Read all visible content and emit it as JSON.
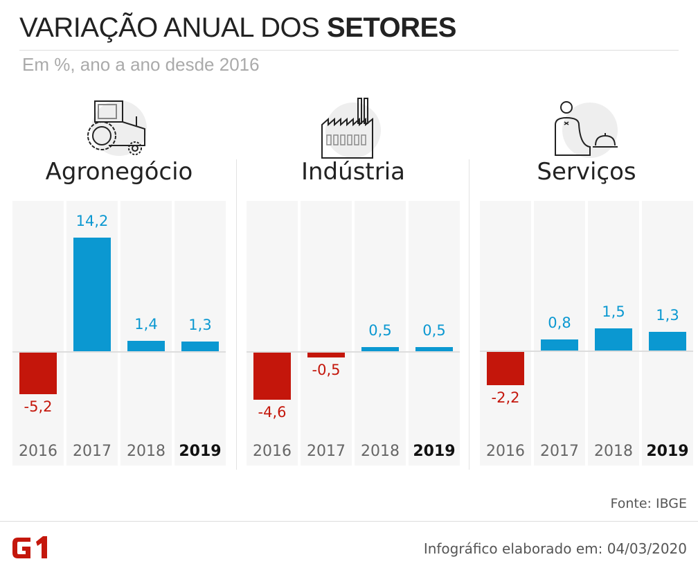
{
  "title_regular": "VARIAÇÃO ANUAL DOS",
  "title_bold": "SETORES",
  "subtitle": "Em %, ano a ano desde 2016",
  "colors": {
    "positive": "#0b98d1",
    "negative": "#c4160b",
    "column_bg": "#f6f6f6"
  },
  "chart_data": [
    {
      "type": "bar",
      "title": "Agronegócio",
      "icon": "tractor-icon",
      "categories": [
        "2016",
        "2017",
        "2018",
        "2019"
      ],
      "values": [
        -5.2,
        14.2,
        1.4,
        1.3
      ],
      "labels": [
        "-5,2",
        "14,2",
        "1,4",
        "1,3"
      ],
      "ylim": [
        -14.1,
        18.8
      ],
      "highlight": "2019"
    },
    {
      "type": "bar",
      "title": "Indústria",
      "icon": "factory-icon",
      "categories": [
        "2016",
        "2017",
        "2018",
        "2019"
      ],
      "values": [
        -4.6,
        -0.5,
        0.5,
        0.5
      ],
      "labels": [
        "-4,6",
        "-0,5",
        "0,5",
        "0,5"
      ],
      "ylim": [
        -10.9,
        14.5
      ],
      "highlight": "2019"
    },
    {
      "type": "bar",
      "title": "Serviços",
      "icon": "waiter-icon",
      "categories": [
        "2016",
        "2017",
        "2018",
        "2019"
      ],
      "values": [
        -2.2,
        0.8,
        1.5,
        1.3
      ],
      "labels": [
        "-2,2",
        "0,8",
        "1,5",
        "1,3"
      ],
      "ylim": [
        -7.5,
        9.9
      ],
      "highlight": "2019"
    }
  ],
  "source": "Fonte: IBGE",
  "footer": "Infográfico elaborado em: 04/03/2020",
  "logo_text": "G1"
}
